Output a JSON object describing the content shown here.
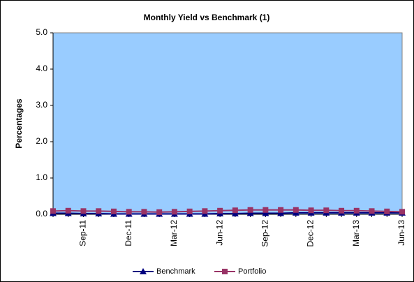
{
  "chart_data": {
    "type": "line",
    "title": "Monthly Yield vs Benchmark (1)",
    "y_label": "Percentages",
    "categories": [
      null,
      null,
      "Sep-11",
      null,
      null,
      "Dec-11",
      null,
      null,
      "Mar-12",
      null,
      null,
      "Jun-12",
      null,
      null,
      "Sep-12",
      null,
      null,
      "Dec-12",
      null,
      null,
      "Mar-13",
      null,
      null,
      "Jun-13"
    ],
    "series": [
      {
        "name": "Benchmark",
        "color": "#000080",
        "marker": "triangle",
        "values": [
          0.03,
          0.03,
          0.02,
          0.02,
          0.01,
          0.01,
          0.01,
          0.01,
          0.01,
          0.01,
          0.01,
          0.02,
          0.02,
          0.03,
          0.03,
          0.03,
          0.04,
          0.04,
          0.04,
          0.04,
          0.04,
          0.04,
          0.04,
          0.04
        ]
      },
      {
        "name": "Portfolio",
        "color": "#993366",
        "marker": "square",
        "values": [
          0.09,
          0.1,
          0.09,
          0.09,
          0.08,
          0.07,
          0.07,
          0.06,
          0.07,
          0.08,
          0.09,
          0.1,
          0.11,
          0.12,
          0.12,
          0.12,
          0.12,
          0.11,
          0.11,
          0.1,
          0.1,
          0.09,
          0.08,
          0.07
        ]
      }
    ],
    "ylim": [
      0,
      5
    ],
    "yticks": [
      {
        "value": 0,
        "label": "0.0"
      },
      {
        "value": 1,
        "label": "1.0"
      },
      {
        "value": 2,
        "label": "2.0"
      },
      {
        "value": 3,
        "label": "3.0"
      },
      {
        "value": 4,
        "label": "4.0"
      },
      {
        "value": 5,
        "label": "5.0"
      }
    ],
    "plot_background": "#99ccff",
    "legend": "bottom"
  }
}
